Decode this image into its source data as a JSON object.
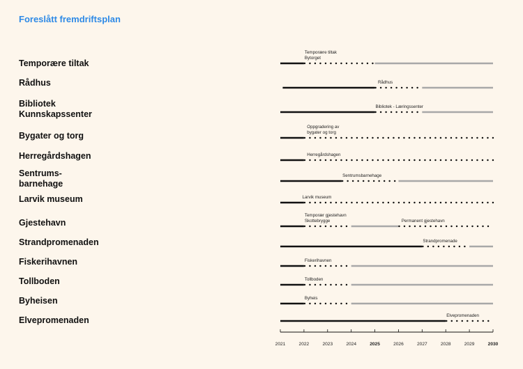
{
  "title": "Foreslått fremdriftsplan",
  "colors": {
    "title": "#2e8ae6",
    "solid": "#111111",
    "dotted": "#111111",
    "future": "#a8a8a8",
    "background": "#fdf6ec"
  },
  "chart_data": {
    "type": "gantt",
    "x_axis": {
      "ticks": [
        {
          "label": "2021",
          "bold": false
        },
        {
          "label": "2022",
          "bold": false
        },
        {
          "label": "2023",
          "bold": false
        },
        {
          "label": "2024",
          "bold": false
        },
        {
          "label": "2025",
          "bold": true
        },
        {
          "label": "2026",
          "bold": false
        },
        {
          "label": "2027",
          "bold": false
        },
        {
          "label": "2028",
          "bold": false
        },
        {
          "label": "2029",
          "bold": false
        },
        {
          "label": "2030",
          "bold": true
        }
      ],
      "range": [
        2021,
        2030
      ]
    },
    "rows": [
      {
        "name": "Temporære tiltak",
        "labels": [
          {
            "text": "Temporære tiltak\nBytorget",
            "at": 2022
          }
        ],
        "segments": [
          {
            "kind": "solid",
            "from": 2021,
            "to": 2022
          },
          {
            "kind": "dotted",
            "from": 2022,
            "to": 2025
          },
          {
            "kind": "future",
            "from": 2025,
            "to": 2030
          }
        ]
      },
      {
        "name": "Rådhus",
        "labels": [
          {
            "text": "Rådhus",
            "at": 2025.1
          }
        ],
        "segments": [
          {
            "kind": "solid",
            "from": 2021.1,
            "to": 2025
          },
          {
            "kind": "dotted",
            "from": 2025,
            "to": 2027
          },
          {
            "kind": "future",
            "from": 2027,
            "to": 2030
          }
        ]
      },
      {
        "name": "Bibliotek\nKunnskapssenter",
        "labels": [
          {
            "text": "Bibliotek - Læringssenter",
            "at": 2025
          }
        ],
        "segments": [
          {
            "kind": "solid",
            "from": 2021,
            "to": 2025
          },
          {
            "kind": "dotted",
            "from": 2025,
            "to": 2027
          },
          {
            "kind": "future",
            "from": 2027,
            "to": 2030
          }
        ]
      },
      {
        "name": "Bygater og torg",
        "labels": [
          {
            "text": "Oppgradering av\nbygater og torg",
            "at": 2022.1
          }
        ],
        "segments": [
          {
            "kind": "solid",
            "from": 2021,
            "to": 2022
          },
          {
            "kind": "dotted",
            "from": 2022,
            "to": 2030
          }
        ]
      },
      {
        "name": "Herregårdshagen",
        "labels": [
          {
            "text": "Herregårdshagen",
            "at": 2022.1
          }
        ],
        "segments": [
          {
            "kind": "solid",
            "from": 2021,
            "to": 2022
          },
          {
            "kind": "dotted",
            "from": 2022,
            "to": 2030
          }
        ]
      },
      {
        "name": "Sentrums-\nbarnehage",
        "labels": [
          {
            "text": "Sentrumsbarnehage",
            "at": 2023.6
          }
        ],
        "segments": [
          {
            "kind": "solid",
            "from": 2021,
            "to": 2023.6
          },
          {
            "kind": "dotted",
            "from": 2023.6,
            "to": 2026
          },
          {
            "kind": "future",
            "from": 2026,
            "to": 2030
          }
        ]
      },
      {
        "name": "Larvik museum",
        "labels": [
          {
            "text": "Larvik museum",
            "at": 2021.9
          }
        ],
        "segments": [
          {
            "kind": "solid",
            "from": 2021,
            "to": 2022
          },
          {
            "kind": "dotted",
            "from": 2022,
            "to": 2030
          }
        ]
      },
      {
        "name": "Gjestehavn",
        "labels": [
          {
            "text": "Temporær gjestehavn\nSkottebrygge",
            "at": 2022
          },
          {
            "text": "Permanent gjestehavn",
            "at": 2026.1
          }
        ],
        "segments": [
          {
            "kind": "solid",
            "from": 2021,
            "to": 2022
          },
          {
            "kind": "dotted",
            "from": 2022,
            "to": 2024
          },
          {
            "kind": "future",
            "from": 2024,
            "to": 2026
          },
          {
            "kind": "dotted",
            "from": 2026,
            "to": 2030
          }
        ]
      },
      {
        "name": "Strandpromenaden",
        "labels": [
          {
            "text": "Strandpromenade",
            "at": 2027
          }
        ],
        "segments": [
          {
            "kind": "solid",
            "from": 2021,
            "to": 2027
          },
          {
            "kind": "dotted",
            "from": 2027,
            "to": 2029
          },
          {
            "kind": "future",
            "from": 2029,
            "to": 2030
          }
        ]
      },
      {
        "name": "Fiskerihavnen",
        "labels": [
          {
            "text": "Fiskerihavnen",
            "at": 2022
          }
        ],
        "segments": [
          {
            "kind": "solid",
            "from": 2021,
            "to": 2022
          },
          {
            "kind": "dotted",
            "from": 2022,
            "to": 2024
          },
          {
            "kind": "future",
            "from": 2024,
            "to": 2030
          }
        ]
      },
      {
        "name": "Tollboden",
        "labels": [
          {
            "text": "Tollboden",
            "at": 2022
          }
        ],
        "segments": [
          {
            "kind": "solid",
            "from": 2021,
            "to": 2022
          },
          {
            "kind": "dotted",
            "from": 2022,
            "to": 2024
          },
          {
            "kind": "future",
            "from": 2024,
            "to": 2030
          }
        ]
      },
      {
        "name": "Byheisen",
        "labels": [
          {
            "text": "Byheis",
            "at": 2022
          }
        ],
        "segments": [
          {
            "kind": "solid",
            "from": 2021,
            "to": 2022
          },
          {
            "kind": "dotted",
            "from": 2022,
            "to": 2024
          },
          {
            "kind": "future",
            "from": 2024,
            "to": 2030
          }
        ]
      },
      {
        "name": "Elvepromenaden",
        "labels": [
          {
            "text": "Elvepromenaden",
            "at": 2028
          }
        ],
        "segments": [
          {
            "kind": "solid",
            "from": 2021,
            "to": 2028
          },
          {
            "kind": "dotted",
            "from": 2028,
            "to": 2030
          }
        ]
      }
    ]
  }
}
